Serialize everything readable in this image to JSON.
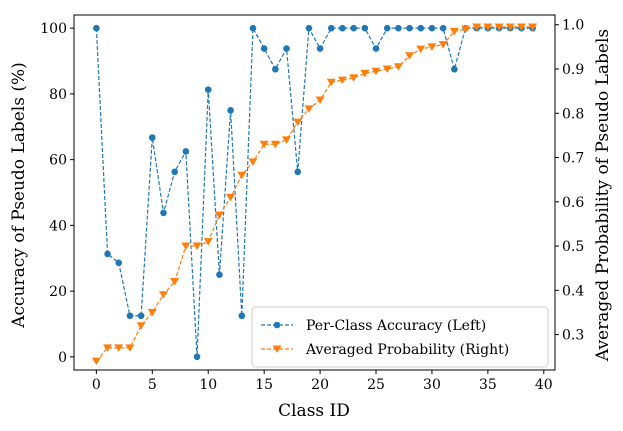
{
  "chart_data": {
    "type": "line",
    "title": "",
    "xlabel": "Class ID",
    "ylabel_left": "Accuracy of Pseudo Labels (%)",
    "ylabel_right": "Averaged Probability of Pseudo Labels",
    "x": [
      0,
      1,
      2,
      3,
      4,
      5,
      6,
      7,
      8,
      9,
      10,
      11,
      12,
      13,
      14,
      15,
      16,
      17,
      18,
      19,
      20,
      21,
      22,
      23,
      24,
      25,
      26,
      27,
      28,
      29,
      30,
      31,
      32,
      33,
      34,
      35,
      36,
      37,
      38,
      39
    ],
    "xlim": [
      -2,
      41
    ],
    "xticks": [
      "0",
      "5",
      "10",
      "15",
      "20",
      "25",
      "30",
      "35",
      "40"
    ],
    "ylim_left": [
      -4,
      104
    ],
    "yticks_left": [
      "0",
      "20",
      "40",
      "60",
      "80",
      "100"
    ],
    "ylim_right": [
      0.22,
      1.022
    ],
    "yticks_right": [
      "0.3",
      "0.4",
      "0.5",
      "0.6",
      "0.7",
      "0.8",
      "0.9",
      "1.0"
    ],
    "series": [
      {
        "name": "Per-Class Accuracy (Left)",
        "axis": "left",
        "color": "#1f77b4",
        "marker": "circle",
        "values": [
          100,
          31.3,
          28.6,
          12.5,
          12.5,
          66.7,
          43.8,
          56.3,
          62.5,
          0,
          81.3,
          25,
          75,
          12.5,
          100,
          93.8,
          87.5,
          93.8,
          56.3,
          100,
          93.8,
          100,
          100,
          100,
          100,
          93.8,
          100,
          100,
          100,
          100,
          100,
          100,
          87.5,
          100,
          100,
          100,
          100,
          100,
          100,
          100
        ]
      },
      {
        "name": "Averaged Probability (Right)",
        "axis": "right",
        "color": "#ff7f0e",
        "marker": "triangle-down",
        "values": [
          0.24,
          0.27,
          0.27,
          0.27,
          0.32,
          0.35,
          0.39,
          0.42,
          0.5,
          0.5,
          0.51,
          0.57,
          0.61,
          0.66,
          0.69,
          0.73,
          0.73,
          0.74,
          0.78,
          0.81,
          0.83,
          0.87,
          0.875,
          0.88,
          0.89,
          0.895,
          0.9,
          0.905,
          0.93,
          0.945,
          0.95,
          0.955,
          0.985,
          0.99,
          0.995,
          0.995,
          0.995,
          0.995,
          0.995,
          0.995
        ]
      }
    ],
    "legend_position": "lower-right"
  }
}
